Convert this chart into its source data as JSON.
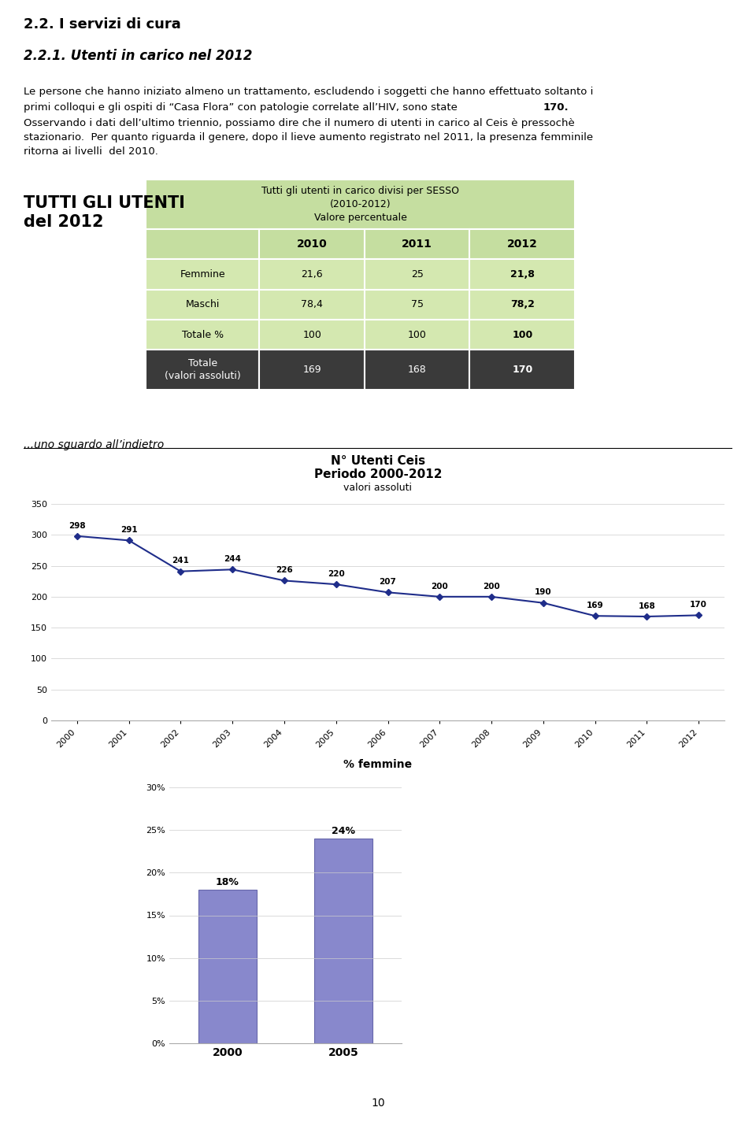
{
  "title1": "2.2. I servizi di cura",
  "title2": "2.2.1. Utenti in carico nel 2012",
  "paragraph1_line1": "Le persone che hanno iniziato almeno un trattamento, escludendo i soggetti che hanno effettuato soltanto i",
  "paragraph1_line2": "primi colloqui e gli ospiti di “Casa Flora” con patologie correlate all’HIV, sono state ",
  "paragraph1_bold": "170.",
  "paragraph2_line1": "Osservando i dati dell’ultimo triennio, possiamo dire che il numero di utenti in carico al Ceis è pressochè",
  "paragraph2_line2": "stazionario.  Per quanto riguarda il genere, dopo il lieve aumento registrato nel 2011, la presenza femminile",
  "paragraph2_line3": "ritorna ai livelli  del 2010.",
  "left_label_line1": "TUTTI GLI UTENTI",
  "left_label_line2": "del 2012",
  "table_title_line1": "Tutti gli utenti in carico divisi per SESSO",
  "table_title_line2": "(2010-2012)",
  "table_title_line3": "Valore percentuale",
  "table_header": [
    "",
    "2010",
    "2011",
    "2012"
  ],
  "table_rows": [
    [
      "Femmine",
      "21,6",
      "25",
      "21,8"
    ],
    [
      "Maschi",
      "78,4",
      "75",
      "78,2"
    ],
    [
      "Totale %",
      "100",
      "100",
      "100"
    ],
    [
      "Totale\n(valori assoluti)",
      "169",
      "168",
      "170"
    ]
  ],
  "table_header_bg": "#c5dea0",
  "table_row_bg_light": "#d4e8b0",
  "table_row_bg_dark": "#3a3a3a",
  "table_row_fg_dark": "#ffffff",
  "section_label": "...uno sguardo all’indietro",
  "line_chart_title1": "N° Utenti Ceis",
  "line_chart_title2": "Periodo 2000-2012",
  "line_chart_title3": "valori assoluti",
  "line_years": [
    2000,
    2001,
    2002,
    2003,
    2004,
    2005,
    2006,
    2007,
    2008,
    2009,
    2010,
    2011,
    2012
  ],
  "line_values": [
    298,
    291,
    241,
    244,
    226,
    220,
    207,
    200,
    200,
    190,
    169,
    168,
    170
  ],
  "line_color": "#1f2d8a",
  "line_marker": "D",
  "line_ylim": [
    0,
    350
  ],
  "line_yticks": [
    0,
    50,
    100,
    150,
    200,
    250,
    300,
    350
  ],
  "bar_title": "% femmine",
  "bar_categories": [
    "2000",
    "2005"
  ],
  "bar_values": [
    18,
    24
  ],
  "bar_labels": [
    "18%",
    "24%"
  ],
  "bar_color": "#8888cc",
  "bar_ylim": [
    0,
    30
  ],
  "bar_yticks": [
    0,
    5,
    10,
    15,
    20,
    25,
    30
  ],
  "bar_yticklabels": [
    "0%",
    "5%",
    "10%",
    "15%",
    "20%",
    "25%",
    "30%"
  ],
  "page_number": "10",
  "bg_color": "#ffffff"
}
